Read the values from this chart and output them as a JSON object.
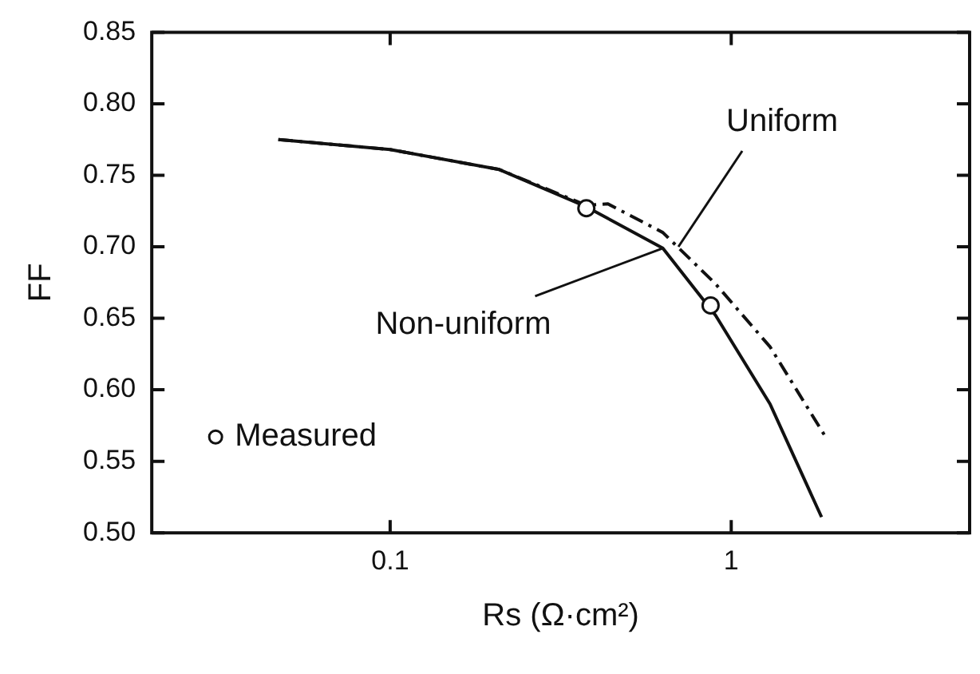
{
  "chart_data": {
    "type": "line",
    "xlabel": "Rs (Ω·cm²)",
    "ylabel": "FF",
    "log": "x",
    "xlim": [
      0.02,
      5
    ],
    "xticks": [
      0.1,
      1
    ],
    "ylim": [
      0.5,
      0.85
    ],
    "yticks": [
      {
        "value": 0.5,
        "label": "0.50"
      },
      {
        "value": 0.55,
        "label": "0.55"
      },
      {
        "value": 0.6,
        "label": "0.60"
      },
      {
        "value": 0.65,
        "label": "0.65"
      },
      {
        "value": 0.7,
        "label": "0.70"
      },
      {
        "value": 0.75,
        "label": "0.75"
      },
      {
        "value": 0.8,
        "label": "0.80"
      },
      {
        "value": 0.85,
        "label": "0.85"
      }
    ],
    "grid": false,
    "legend": "bottom left",
    "series": [
      {
        "type": "line",
        "color": "#111111",
        "line_style": "dashed",
        "marker": "none",
        "x": [
          0.047,
          0.1,
          0.209,
          0.376,
          0.435,
          0.63,
          0.9,
          1.3,
          1.88
        ],
        "values": [
          0.775,
          0.768,
          0.754,
          0.729,
          0.73,
          0.71,
          0.674,
          0.63,
          0.568
        ]
      },
      {
        "type": "line",
        "color": "#111111",
        "line_style": "solid",
        "marker": "none",
        "x": [
          0.047,
          0.1,
          0.209,
          0.376,
          0.63,
          0.9,
          1.3,
          1.84
        ],
        "values": [
          0.775,
          0.768,
          0.754,
          0.728,
          0.699,
          0.652,
          0.59,
          0.511
        ]
      },
      {
        "type": "scatter",
        "name": "Measured",
        "color": "#111111",
        "marker": "circle",
        "x": [
          0.376,
          0.87
        ],
        "values": [
          0.727,
          0.659
        ]
      }
    ],
    "annotations": [
      {
        "text": "Uniform",
        "x": 0.7,
        "y": 0.7
      },
      {
        "text": "Non-uniform",
        "x": 0.63,
        "y": 0.699
      }
    ]
  }
}
